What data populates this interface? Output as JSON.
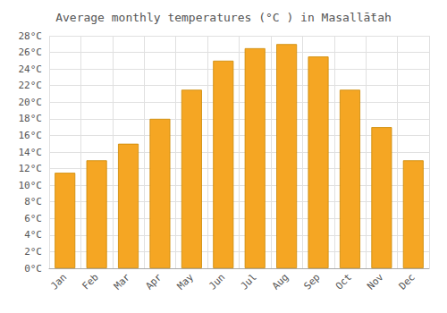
{
  "chart_data": {
    "type": "bar",
    "title": "Average monthly temperatures (°C ) in Masallā̄tah",
    "categories": [
      "Jan",
      "Feb",
      "Mar",
      "Apr",
      "May",
      "Jun",
      "Jul",
      "Aug",
      "Sep",
      "Oct",
      "Nov",
      "Dec"
    ],
    "values": [
      11.5,
      13.0,
      15.0,
      18.0,
      21.5,
      25.0,
      26.5,
      27.0,
      25.5,
      21.5,
      17.0,
      13.0
    ],
    "color": "#F5A623",
    "ylim": [
      0,
      28
    ],
    "yticks": [
      {
        "value": 0,
        "label": "0°C"
      },
      {
        "value": 2,
        "label": "2°C"
      },
      {
        "value": 4,
        "label": "4°C"
      },
      {
        "value": 6,
        "label": "6°C"
      },
      {
        "value": 8,
        "label": "8°C"
      },
      {
        "value": 10,
        "label": "10°C"
      },
      {
        "value": 12,
        "label": "12°C"
      },
      {
        "value": 14,
        "label": "14°C"
      },
      {
        "value": 16,
        "label": "16°C"
      },
      {
        "value": 18,
        "label": "18°C"
      },
      {
        "value": 20,
        "label": "20°C"
      },
      {
        "value": 22,
        "label": "22°C"
      },
      {
        "value": 24,
        "label": "24°C"
      },
      {
        "value": 26,
        "label": "26°C"
      },
      {
        "value": 28,
        "label": "28°C"
      }
    ],
    "grid": true
  }
}
